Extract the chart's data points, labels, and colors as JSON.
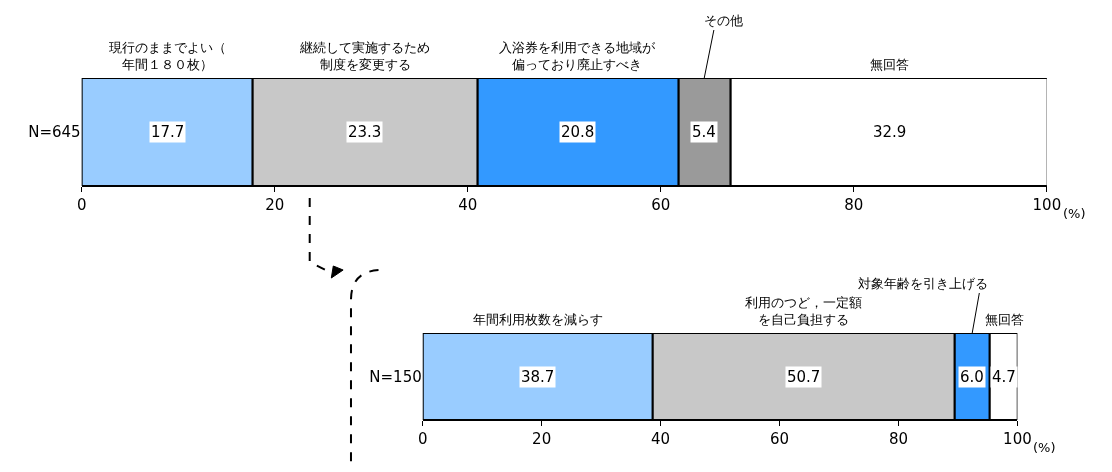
{
  "chart_data": [
    {
      "type": "bar",
      "orientation": "horizontal",
      "stacked": true,
      "categories": [
        "N=645"
      ],
      "xlim": [
        0,
        100
      ],
      "xticks": [
        0,
        20,
        40,
        60,
        80,
        100
      ],
      "data_labels": true,
      "annotations": [
        "(%)"
      ],
      "series": [
        {
          "name": "現行のままでよい（年間１８０枚）",
          "color": "#99ccff",
          "values": [
            17.7
          ]
        },
        {
          "name": "継続して実施するため制度を変更する",
          "color": "#c8c8c8",
          "values": [
            23.3
          ]
        },
        {
          "name": "入浴券を利用できる地域が偏っており廃止すべき",
          "color": "#3399ff",
          "values": [
            20.8
          ]
        },
        {
          "name": "その他",
          "color": "#9a9a9a",
          "values": [
            5.4
          ]
        },
        {
          "name": "無回答",
          "color": "#ffffff",
          "values": [
            32.9
          ]
        }
      ]
    },
    {
      "type": "bar",
      "orientation": "horizontal",
      "stacked": true,
      "categories": [
        "N=150"
      ],
      "xlim": [
        0,
        100
      ],
      "xticks": [
        0,
        20,
        40,
        60,
        80,
        100
      ],
      "data_labels": true,
      "annotations": [
        "(%)"
      ],
      "series": [
        {
          "name": "年間利用枚数を減らす",
          "color": "#99ccff",
          "values": [
            38.7
          ]
        },
        {
          "name": "利用のつど，一定額を自己負担する",
          "color": "#c8c8c8",
          "values": [
            50.7
          ]
        },
        {
          "name": "対象年齢を引き上げる",
          "color": "#3399ff",
          "values": [
            6.0
          ],
          "value_labels": [
            "6.0"
          ]
        },
        {
          "name": "無回答",
          "color": "#ffffff",
          "values": [
            4.7
          ]
        }
      ]
    }
  ]
}
